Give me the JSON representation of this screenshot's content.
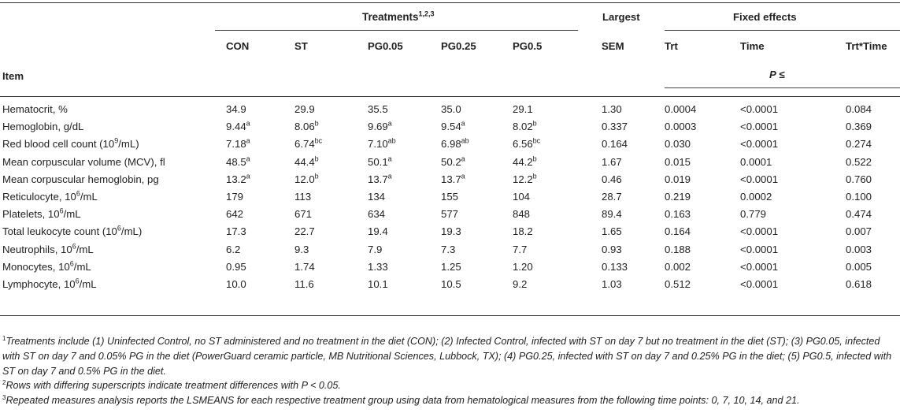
{
  "table": {
    "treatments_header": "Treatments",
    "treatments_sup": "1,2,3",
    "largest_header": "Largest",
    "fixed_effects_header": "Fixed effects",
    "item_header": "Item",
    "p_label": "P",
    "p_symbol": "≤",
    "columns": [
      "CON",
      "ST",
      "PG0.05",
      "PG0.25",
      "PG0.5",
      "SEM",
      "Trt",
      "Time",
      "Trt*Time"
    ],
    "rows": [
      {
        "item": "Hematocrit, %",
        "item_sup": "",
        "item_suffix": "",
        "values": [
          [
            "34.9",
            ""
          ],
          [
            "29.9",
            ""
          ],
          [
            "35.5",
            ""
          ],
          [
            "35.0",
            ""
          ],
          [
            "29.1",
            ""
          ],
          [
            "1.30",
            ""
          ],
          [
            "0.0004",
            ""
          ],
          [
            "<0.0001",
            ""
          ],
          [
            "0.084",
            ""
          ]
        ]
      },
      {
        "item": "Hemoglobin, g/dL",
        "item_sup": "",
        "item_suffix": "",
        "values": [
          [
            "9.44",
            "a"
          ],
          [
            "8.06",
            "b"
          ],
          [
            "9.69",
            "a"
          ],
          [
            "9.54",
            "a"
          ],
          [
            "8.02",
            "b"
          ],
          [
            "0.337",
            ""
          ],
          [
            "0.0003",
            ""
          ],
          [
            "<0.0001",
            ""
          ],
          [
            "0.369",
            ""
          ]
        ]
      },
      {
        "item": "Red blood cell count (10",
        "item_sup": "9",
        "item_suffix": "/mL)",
        "values": [
          [
            "7.18",
            "a"
          ],
          [
            "6.74",
            "bc"
          ],
          [
            "7.10",
            "ab"
          ],
          [
            "6.98",
            "ab"
          ],
          [
            "6.56",
            "bc"
          ],
          [
            "0.164",
            ""
          ],
          [
            "0.030",
            ""
          ],
          [
            "<0.0001",
            ""
          ],
          [
            "0.274",
            ""
          ]
        ]
      },
      {
        "item": "Mean corpuscular volume (MCV), fl",
        "item_sup": "",
        "item_suffix": "",
        "values": [
          [
            "48.5",
            "a"
          ],
          [
            "44.4",
            "b"
          ],
          [
            "50.1",
            "a"
          ],
          [
            "50.2",
            "a"
          ],
          [
            "44.2",
            "b"
          ],
          [
            "1.67",
            ""
          ],
          [
            "0.015",
            ""
          ],
          [
            "0.0001",
            ""
          ],
          [
            "0.522",
            ""
          ]
        ]
      },
      {
        "item": "Mean corpuscular hemoglobin, pg",
        "item_sup": "",
        "item_suffix": "",
        "values": [
          [
            "13.2",
            "a"
          ],
          [
            "12.0",
            "b"
          ],
          [
            "13.7",
            "a"
          ],
          [
            "13.7",
            "a"
          ],
          [
            "12.2",
            "b"
          ],
          [
            "0.46",
            ""
          ],
          [
            "0.019",
            ""
          ],
          [
            "<0.0001",
            ""
          ],
          [
            "0.760",
            ""
          ]
        ]
      },
      {
        "item": "Reticulocyte, 10",
        "item_sup": "6",
        "item_suffix": "/mL",
        "values": [
          [
            "179",
            ""
          ],
          [
            "113",
            ""
          ],
          [
            "134",
            ""
          ],
          [
            "155",
            ""
          ],
          [
            "104",
            ""
          ],
          [
            "28.7",
            ""
          ],
          [
            "0.219",
            ""
          ],
          [
            "0.0002",
            ""
          ],
          [
            "0.100",
            ""
          ]
        ]
      },
      {
        "item": "Platelets, 10",
        "item_sup": "6",
        "item_suffix": "/mL",
        "values": [
          [
            "642",
            ""
          ],
          [
            "671",
            ""
          ],
          [
            "634",
            ""
          ],
          [
            "577",
            ""
          ],
          [
            "848",
            ""
          ],
          [
            "89.4",
            ""
          ],
          [
            "0.163",
            ""
          ],
          [
            "0.779",
            ""
          ],
          [
            "0.474",
            ""
          ]
        ]
      },
      {
        "item": "Total leukocyte count (10",
        "item_sup": "6",
        "item_suffix": "/mL)",
        "values": [
          [
            "17.3",
            ""
          ],
          [
            "22.7",
            ""
          ],
          [
            "19.4",
            ""
          ],
          [
            "19.3",
            ""
          ],
          [
            "18.2",
            ""
          ],
          [
            "1.65",
            ""
          ],
          [
            "0.164",
            ""
          ],
          [
            "<0.0001",
            ""
          ],
          [
            "0.007",
            ""
          ]
        ]
      },
      {
        "item": "Neutrophils, 10",
        "item_sup": "6",
        "item_suffix": "/mL",
        "values": [
          [
            "6.2",
            ""
          ],
          [
            "9.3",
            ""
          ],
          [
            "7.9",
            ""
          ],
          [
            "7.3",
            ""
          ],
          [
            "7.7",
            ""
          ],
          [
            "0.93",
            ""
          ],
          [
            "0.188",
            ""
          ],
          [
            "<0.0001",
            ""
          ],
          [
            "0.003",
            ""
          ]
        ]
      },
      {
        "item": "Monocytes, 10",
        "item_sup": "6",
        "item_suffix": "/mL",
        "values": [
          [
            "0.95",
            ""
          ],
          [
            "1.74",
            ""
          ],
          [
            "1.33",
            ""
          ],
          [
            "1.25",
            ""
          ],
          [
            "1.20",
            ""
          ],
          [
            "0.133",
            ""
          ],
          [
            "0.002",
            ""
          ],
          [
            "<0.0001",
            ""
          ],
          [
            "0.005",
            ""
          ]
        ]
      },
      {
        "item": "Lymphocyte, 10",
        "item_sup": "6",
        "item_suffix": "/mL",
        "values": [
          [
            "10.0",
            ""
          ],
          [
            "11.6",
            ""
          ],
          [
            "10.1",
            ""
          ],
          [
            "10.5",
            ""
          ],
          [
            "9.2",
            ""
          ],
          [
            "1.03",
            ""
          ],
          [
            "0.512",
            ""
          ],
          [
            "<0.0001",
            ""
          ],
          [
            "0.618",
            ""
          ]
        ]
      }
    ]
  },
  "footnotes": [
    {
      "sup": "1",
      "text": "Treatments include (1) Uninfected Control, no ST administered and no treatment in the diet (CON); (2) Infected Control, infected with ST on day 7 but no treatment in the diet (ST); (3) PG0.05, infected with ST on day 7 and 0.05% PG in the diet (PowerGuard ceramic particle, MB Nutritional Sciences, Lubbock, TX); (4) PG0.25, infected with ST on day 7 and 0.25% PG in the diet; (5) PG0.5, infected with ST on day 7 and 0.5% PG in the diet."
    },
    {
      "sup": "2",
      "text": "Rows with differing superscripts indicate treatment differences with P < 0.05."
    },
    {
      "sup": "3",
      "text": "Repeated measures analysis reports the LSMEANS for each respective treatment group using data from hematological measures from the following time points: 0, 7, 10, 14, and 21."
    }
  ]
}
